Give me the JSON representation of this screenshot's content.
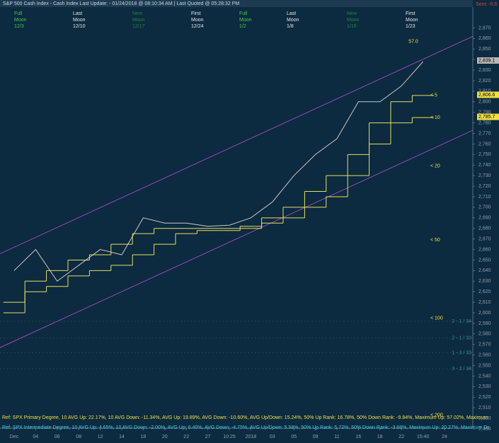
{
  "header": {
    "title": "S&P 500 Cash Index - Cash Index  Last Update: - 01/24/2018 @ 08:10:34 AM | Last Quoted @ 05:28:32 PM",
    "sentiment": "Sent: -0.6"
  },
  "moon_phases": [
    {
      "phase": "Full",
      "word": "Moon",
      "date": "12/3"
    },
    {
      "phase": "Last",
      "word": "Moon",
      "date": "12/10"
    },
    {
      "phase": "New",
      "word": "Moon",
      "date": "12/17"
    },
    {
      "phase": "First",
      "word": "Moon",
      "date": "12/24"
    },
    {
      "phase": "Full",
      "word": "Moon",
      "date": "1/2"
    },
    {
      "phase": "Last",
      "word": "Moon",
      "date": "1/8"
    },
    {
      "phase": "New",
      "word": "Moon",
      "date": "1/16"
    },
    {
      "phase": "First",
      "word": "Moon",
      "date": "1/23"
    }
  ],
  "chart_data": {
    "type": "line",
    "categories": [
      "Dec",
      "04",
      "06",
      "08",
      "12",
      "14",
      "18",
      "20",
      "22",
      "27",
      "10:25",
      "2018",
      "03",
      "05",
      "09",
      "11",
      "16",
      "18",
      "22",
      "15:40",
      "24"
    ],
    "series": [
      {
        "color": "#c8c8c8",
        "values": [
          2640,
          2660,
          2630,
          2645,
          2660,
          2655,
          2690,
          2685,
          2685,
          2682,
          2683,
          2690,
          2705,
          2730,
          2750,
          2765,
          2800,
          2800,
          2815,
          2838,
          null
        ]
      },
      {
        "color": "#e6e05a",
        "step": true,
        "values": [
          2610,
          2630,
          2640,
          2650,
          2655,
          2665,
          2675,
          2680,
          2680,
          2680,
          2680,
          2682,
          2690,
          2700,
          2715,
          2730,
          2750,
          2780,
          2800,
          2806,
          null
        ]
      },
      {
        "color": "#e6e05a",
        "step": true,
        "values": [
          2600,
          2620,
          2625,
          2635,
          2640,
          2645,
          2655,
          2665,
          2675,
          2678,
          2678,
          2680,
          2685,
          2690,
          2700,
          2710,
          2730,
          2760,
          2780,
          2785,
          null
        ]
      }
    ],
    "ylim": [
      2486,
      2879
    ],
    "yticks": [
      {
        "value": 2490,
        "label": "2,490"
      },
      {
        "value": 2500,
        "label": "2,500"
      },
      {
        "value": 2510,
        "label": "2,510"
      },
      {
        "value": 2520,
        "label": "2,520"
      },
      {
        "value": 2530,
        "label": "2,530"
      },
      {
        "value": 2540,
        "label": "2,540"
      },
      {
        "value": 2550,
        "label": "2,550"
      },
      {
        "value": 2560,
        "label": "2,560"
      },
      {
        "value": 2570,
        "label": "2,570"
      },
      {
        "value": 2580,
        "label": "2,580"
      },
      {
        "value": 2590,
        "label": "2,590"
      },
      {
        "value": 2600,
        "label": "2,600"
      },
      {
        "value": 2610,
        "label": "2,610"
      },
      {
        "value": 2620,
        "label": "2,620"
      },
      {
        "value": 2630,
        "label": "2,630"
      },
      {
        "value": 2640,
        "label": "2,640"
      },
      {
        "value": 2650,
        "label": "2,650"
      },
      {
        "value": 2660,
        "label": "2,660"
      },
      {
        "value": 2670,
        "label": "2,670"
      },
      {
        "value": 2680,
        "label": "2,680"
      },
      {
        "value": 2690,
        "label": "2,690"
      },
      {
        "value": 2700,
        "label": "2,700"
      },
      {
        "value": 2710,
        "label": "2,710"
      },
      {
        "value": 2720,
        "label": "2,720"
      },
      {
        "value": 2730,
        "label": "2,730"
      },
      {
        "value": 2740,
        "label": "2,740"
      },
      {
        "value": 2750,
        "label": "2,750"
      },
      {
        "value": 2760,
        "label": "2,760"
      },
      {
        "value": 2770,
        "label": "2,770"
      },
      {
        "value": 2780,
        "label": "2,780"
      },
      {
        "value": 2790,
        "label": "2,790"
      },
      {
        "value": 2800,
        "label": "2,800"
      },
      {
        "value": 2810,
        "label": "2,810"
      },
      {
        "value": 2820,
        "label": "2,820"
      },
      {
        "value": 2830,
        "label": "2,830"
      },
      {
        "value": 2840,
        "label": "2,840"
      },
      {
        "value": 2850,
        "label": "2,850"
      },
      {
        "value": 2860,
        "label": "2,860"
      },
      {
        "value": 2870,
        "label": "2,870"
      }
    ],
    "channels": [
      {
        "color": "#b455c8",
        "values": [
          2656,
          2862
        ]
      },
      {
        "color": "#b455c8",
        "values": [
          2567,
          2773
        ]
      }
    ],
    "price_labels": [
      {
        "value": 2839.1,
        "label": "2,839.1",
        "color": "#b8b8b8"
      },
      {
        "value": 2806.6,
        "label": "2,806.6",
        "color": "#f0e040"
      },
      {
        "value": 2785.7,
        "label": "2,785.7",
        "color": "#f0e040"
      }
    ],
    "ma_labels": [
      {
        "value": 2806,
        "label": "< 5"
      },
      {
        "value": 2785,
        "label": "< 10"
      },
      {
        "value": 2739,
        "label": "< 20"
      },
      {
        "value": 2669,
        "label": "< 50"
      },
      {
        "value": 2595,
        "label": "< 100"
      },
      {
        "value": 2503,
        "label": "< 200"
      }
    ],
    "count_labels": [
      {
        "value": 2592,
        "label": "2 - 1 / 34"
      },
      {
        "value": 2576,
        "label": "2 - 1 / 33"
      },
      {
        "value": 2562,
        "label": "1 - 3 / 33"
      },
      {
        "value": 2547,
        "label": "3 - 2 / 34"
      }
    ],
    "peak_label": {
      "value": 2857,
      "label": "57.0"
    }
  },
  "footer": {
    "primary": "Ref: SPX Primary Degree, 10 AVG Up: 22.17%, 10 AVG Down: -11.34%, AVG Up: 19.89%, AVG Down: -10.60%, AVG Up/Down: 15.24%, 50%  Up Rank: 16.78%, 50% Down Rank: -9.84%, Maximum Up: 57.02%, Maximum",
    "intermediate": "Ref: SPX Intermediate Degree, 10 AVG Up: 4.65%, 10 AVG Down: -2.00%, AVG Up: 6.40%, AVG Down: -4.75%, AVG Up/Down: 5.58%, 50%  Up Rank: 5.72%, 50% Down Rank: -3.88%, Maximum Up: 20.27%, Maximum Dc"
  }
}
